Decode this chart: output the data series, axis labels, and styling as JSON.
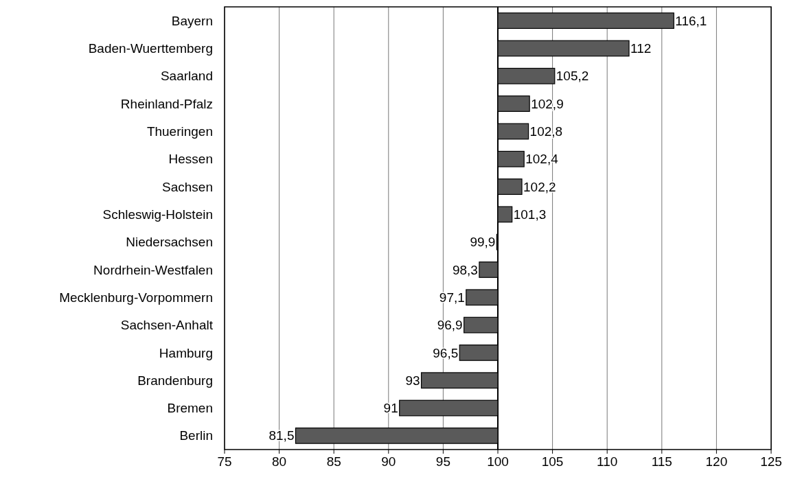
{
  "chart_data": {
    "type": "bar",
    "orientation": "horizontal",
    "categories": [
      "Bayern",
      "Baden-Wuerttemberg",
      "Saarland",
      "Rheinland-Pfalz",
      "Thueringen",
      "Hessen",
      "Sachsen",
      "Schleswig-Holstein",
      "Niedersachsen",
      "Nordrhein-Westfalen",
      "Mecklenburg-Vorpommern",
      "Sachsen-Anhalt",
      "Hamburg",
      "Brandenburg",
      "Bremen",
      "Berlin"
    ],
    "base": [
      100,
      100,
      100,
      100,
      100,
      100,
      100,
      100,
      100,
      100,
      100,
      100,
      100,
      100,
      100,
      100
    ],
    "values": [
      16.1,
      12,
      5.2,
      2.9,
      2.8,
      2.4,
      2.2,
      1.3,
      -0.1,
      -1.7,
      -2.9,
      -3.1,
      -3.5,
      -7,
      -9,
      -18.5
    ],
    "value_labels": [
      "116,1",
      "112",
      "105,2",
      "102,9",
      "102,8",
      "102,4",
      "102,2",
      "101,3",
      "99,9",
      "98,3",
      "97,1",
      "96,9",
      "96,5",
      "93",
      "91",
      "81,5"
    ],
    "color": "#5a5a5a",
    "xlim": [
      75,
      125
    ],
    "xticks": [
      75,
      80,
      85,
      90,
      95,
      100,
      105,
      110,
      115,
      120,
      125
    ],
    "ref_lines": [
      {
        "axis": "x",
        "value": 100,
        "color": "#000000"
      }
    ],
    "grid": "x"
  }
}
